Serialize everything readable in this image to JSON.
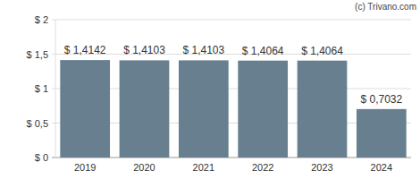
{
  "chart_data": {
    "type": "bar",
    "annotations": [
      "(c) Trivano.com"
    ],
    "categories": [
      "2019",
      "2020",
      "2021",
      "2022",
      "2023",
      "2024"
    ],
    "values": [
      1.4142,
      1.4103,
      1.4103,
      1.4064,
      1.4064,
      0.7032
    ],
    "value_labels": [
      "$ 1,4142",
      "$ 1,4103",
      "$ 1,4103",
      "$ 1,4064",
      "$ 1,4064",
      "$ 0,7032"
    ],
    "data_labels": true,
    "color": "#687f8f",
    "ylim": [
      0,
      2
    ],
    "yticks": [
      {
        "value": 0,
        "label": "$ 0"
      },
      {
        "value": 0.5,
        "label": "$ 0,5"
      },
      {
        "value": 1,
        "label": "$ 1"
      },
      {
        "value": 1.5,
        "label": "$ 1,5"
      },
      {
        "value": 2,
        "label": "$ 2"
      }
    ],
    "grid": true
  }
}
